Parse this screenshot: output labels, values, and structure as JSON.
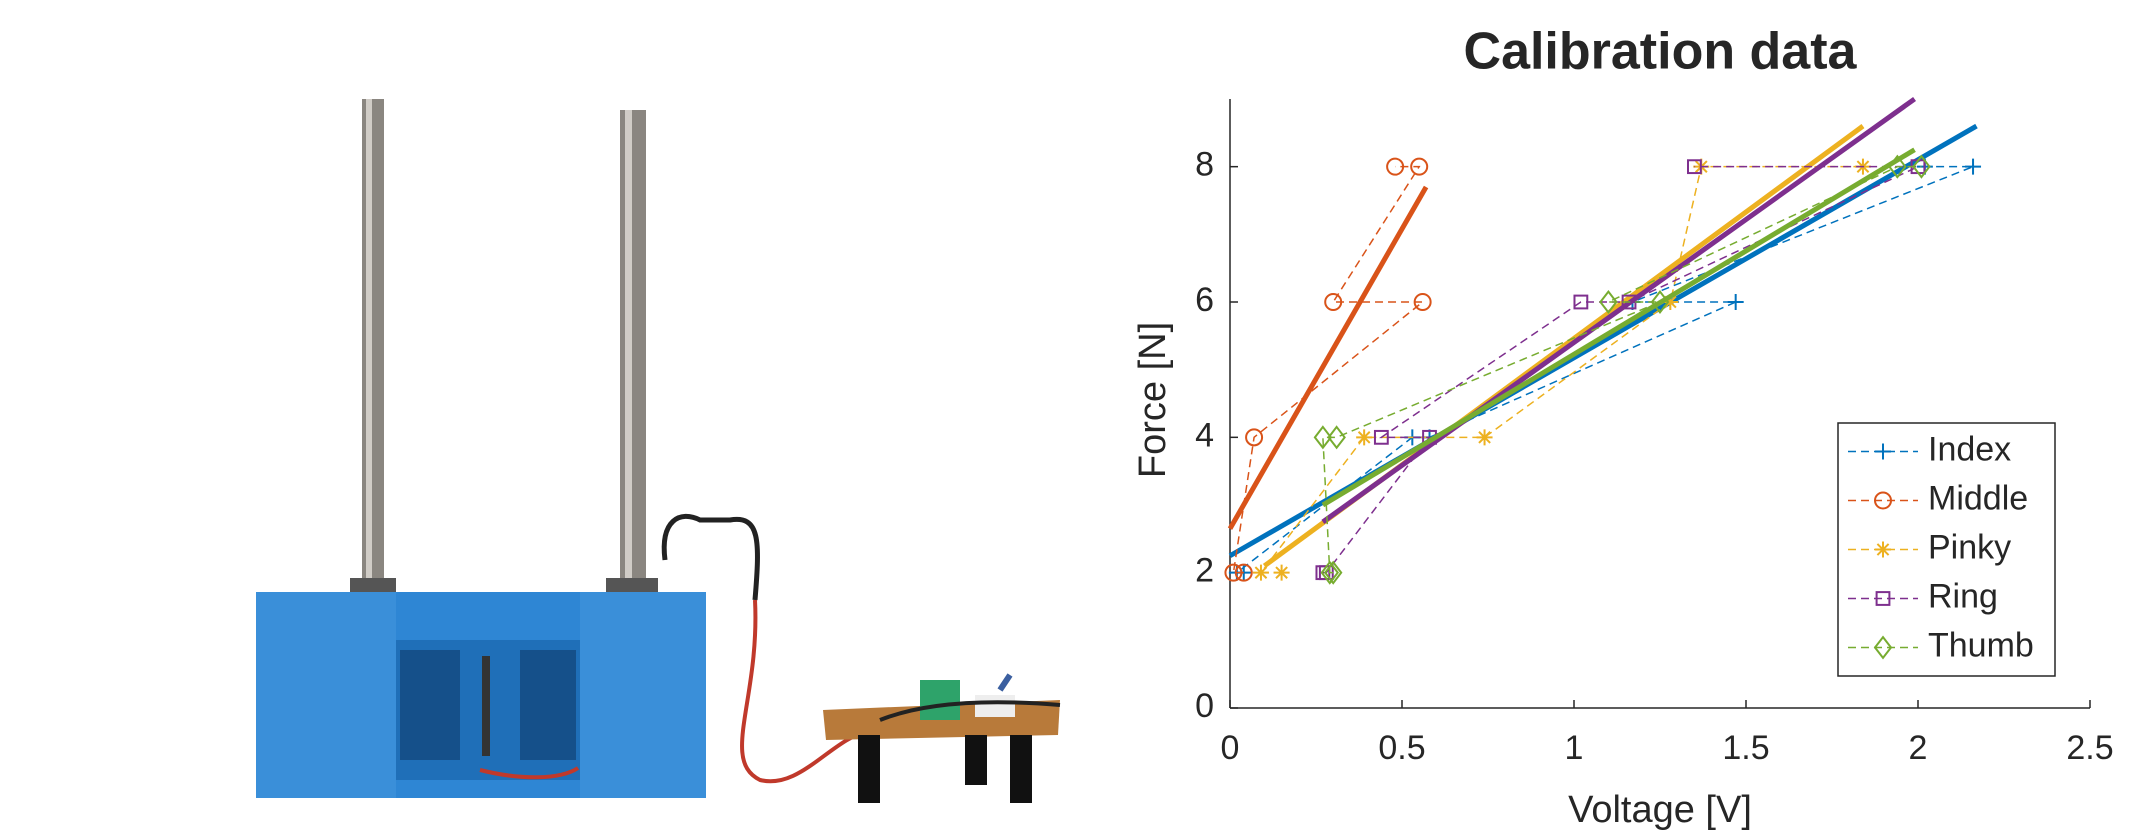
{
  "chart_data": {
    "type": "line",
    "title": "Calibration data",
    "x_label": "Voltage [V]",
    "y_label": "Force [N]",
    "xlim": [
      0,
      2.5
    ],
    "ylim": [
      0,
      9
    ],
    "xticks": [
      0,
      0.5,
      1,
      1.5,
      2,
      2.5
    ],
    "yticks": [
      0,
      2,
      4,
      6,
      8
    ],
    "grid": false,
    "legend": "lower right",
    "series": [
      {
        "name": "Index",
        "color": "#0072bd",
        "marker": "+",
        "x": [
          0.04,
          0.02,
          0.53,
          0.58,
          1.47,
          1.17,
          2.16,
          2.02
        ],
        "values": [
          2,
          2,
          4,
          4,
          6,
          6,
          8,
          8
        ],
        "fit": {
          "x": [
            0,
            2.17
          ],
          "values": [
            2.25,
            8.6
          ]
        }
      },
      {
        "name": "Middle",
        "color": "#d95319",
        "marker": "o",
        "x": [
          0.04,
          0.01,
          0.07,
          0.56,
          0.3,
          0.55,
          0.48
        ],
        "values": [
          2,
          2,
          4,
          6,
          6,
          8,
          8
        ],
        "fit": {
          "x": [
            0,
            0.57
          ],
          "values": [
            2.65,
            7.7
          ]
        }
      },
      {
        "name": "Pinky",
        "color": "#edb120",
        "marker": "*",
        "x": [
          0.15,
          0.09,
          0.39,
          0.74,
          1.28,
          1.37,
          1.84
        ],
        "values": [
          2,
          2,
          4,
          4,
          6,
          8,
          8
        ],
        "fit": {
          "x": [
            0.1,
            1.84
          ],
          "values": [
            2.1,
            8.6
          ]
        }
      },
      {
        "name": "Ring",
        "color": "#7e2f8e",
        "marker": "s",
        "x": [
          0.27,
          0.28,
          0.58,
          0.44,
          1.02,
          1.16,
          2.0,
          1.35
        ],
        "values": [
          2,
          2,
          4,
          4,
          6,
          6,
          8,
          8
        ],
        "fit": {
          "x": [
            0.27,
            1.99
          ],
          "values": [
            2.75,
            9.0
          ]
        }
      },
      {
        "name": "Thumb",
        "color": "#77ac30",
        "marker": "d",
        "x": [
          0.3,
          0.29,
          0.27,
          0.31,
          1.25,
          1.1,
          1.94,
          2.01
        ],
        "values": [
          2,
          2,
          4,
          4,
          6,
          6,
          8,
          8
        ],
        "fit": {
          "x": [
            0.27,
            1.99
          ],
          "values": [
            3.0,
            8.25
          ]
        }
      }
    ]
  }
}
